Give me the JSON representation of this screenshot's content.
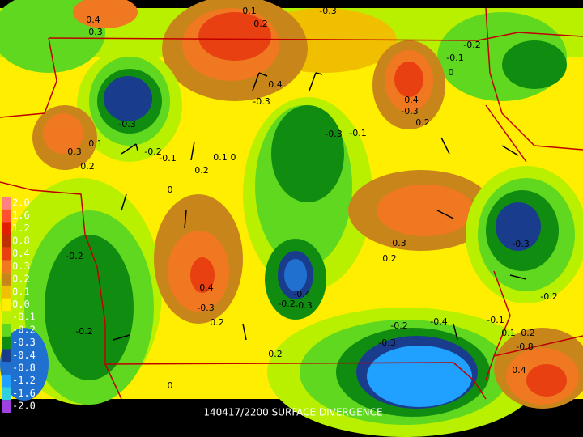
{
  "caption": "140417/2200 SURFACE DIVERGENCE",
  "legend": {
    "labels": [
      "2.0",
      "1.6",
      "1.2",
      "0.8",
      "0.4",
      "0.3",
      "0.2",
      "0.1",
      "0.0",
      "-0.1",
      "-0.2",
      "-0.3",
      "-0.4",
      "-0.8",
      "-1.2",
      "-1.6",
      "-2.0"
    ],
    "colors": [
      "#ff8080",
      "#ff5030",
      "#e02000",
      "#c03000",
      "#e84010",
      "#f07820",
      "#c8861a",
      "#f0c000",
      "#ffee00",
      "#b8f000",
      "#60d820",
      "#108c10",
      "#1a3c8c",
      "#2070d0",
      "#20a0ff",
      "#30d0e0",
      "#a040e0"
    ]
  },
  "contour_labels": [
    "0.4",
    "0.3",
    "0.1",
    "0.2",
    "-0.3",
    "0.4",
    "-0.3",
    "-0.2",
    "-0.1",
    "0",
    "0.4",
    "-0.3",
    "0.2",
    "-0.3",
    "-0.3",
    "-0.1",
    "0.3",
    "0.2",
    "0.1",
    "-0.2",
    "-0.1",
    "0.2",
    "0.1",
    "0",
    "0",
    "0.3",
    "0.2",
    "-0.3",
    "-0.2",
    "-0.4",
    "-0.2",
    "-0.3",
    "0.4",
    "-0.3",
    "0.2",
    "-0.2",
    "0.2",
    "-0.2",
    "-0.4",
    "-0.3",
    "-0.1",
    "0.1",
    "0.2",
    "-0.2",
    "-0.8",
    "0.4",
    "0"
  ]
}
